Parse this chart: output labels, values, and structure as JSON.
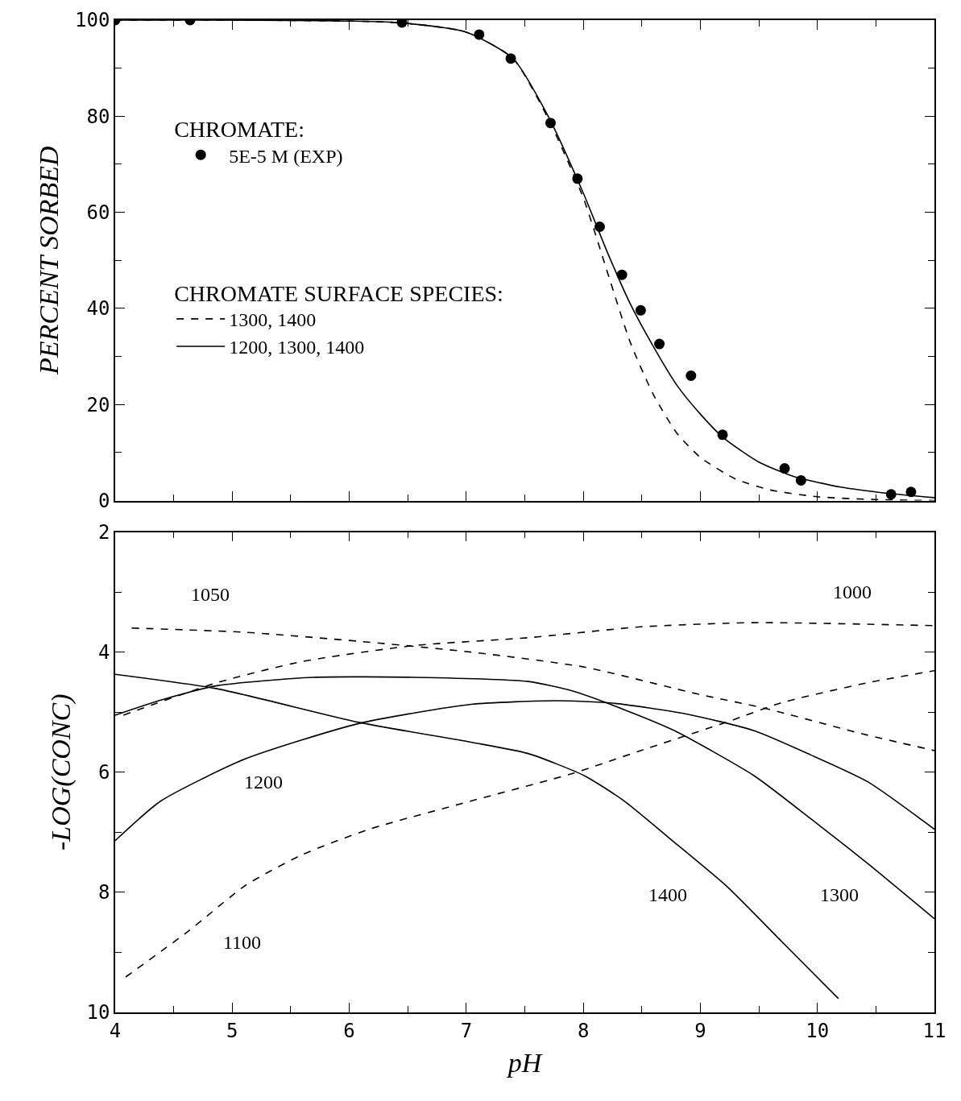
{
  "chart_data": [
    {
      "type": "line",
      "ylabel": "PERCENT SORBED",
      "legend_title": [
        "CHROMATE:",
        "CHROMATE SURFACE SPECIES:"
      ],
      "legend": "left",
      "xlim": [
        4,
        11
      ],
      "xticks": [
        4,
        5,
        6,
        7,
        8,
        9,
        10,
        11
      ],
      "ylim": [
        0,
        100
      ],
      "yticks": [
        0,
        20,
        40,
        60,
        80,
        100
      ],
      "tick_labels": "y",
      "series": [
        {
          "name": "5E-5 M (EXP)",
          "type": "scatter",
          "marker": "circle",
          "color": "#000000",
          "x": [
            4.0,
            4.64,
            6.45,
            7.11,
            7.38,
            7.72,
            7.95,
            8.14,
            8.33,
            8.49,
            8.65,
            8.92,
            9.19,
            9.72,
            9.86,
            10.63,
            10.8
          ],
          "values": [
            100,
            100,
            99.5,
            97,
            92,
            78.6,
            67,
            57,
            47,
            39.6,
            32.6,
            26,
            13.7,
            6.7,
            4.2,
            1.3,
            1.8
          ]
        },
        {
          "name": "1300, 1400",
          "line_style": "dashed",
          "color": "#000000",
          "x": [
            4,
            6.4,
            7,
            7.4,
            7.7,
            8.0,
            8.2,
            8.4,
            8.6,
            8.8,
            9.0,
            9.3,
            9.6,
            10,
            10.5,
            11
          ],
          "values": [
            100,
            99.5,
            97.5,
            92,
            79.5,
            63,
            48,
            33,
            22,
            14,
            9,
            4.5,
            2.2,
            0.8,
            0.2,
            0
          ]
        },
        {
          "name": "1200, 1300, 1400",
          "line_style": "solid",
          "color": "#000000",
          "x": [
            4,
            6.4,
            7,
            7.4,
            7.7,
            8.0,
            8.2,
            8.4,
            8.6,
            8.8,
            9.0,
            9.2,
            9.5,
            9.8,
            10.2,
            10.6,
            11
          ],
          "values": [
            100,
            99.5,
            97.5,
            92,
            80,
            64,
            52,
            41,
            32,
            24,
            18,
            13,
            8,
            5,
            2.8,
            1.5,
            0.6
          ]
        }
      ]
    },
    {
      "type": "line",
      "xlabel": "pH",
      "ylabel": "-LOG(CONC)",
      "xlim": [
        4,
        11
      ],
      "xticks": [
        4,
        5,
        6,
        7,
        8,
        9,
        10,
        11
      ],
      "ylim": [
        10,
        2
      ],
      "yticks": [
        2,
        4,
        6,
        8,
        10
      ],
      "annotations": [
        "1000",
        "1050",
        "1100",
        "1200",
        "1300",
        "1400"
      ],
      "series": [
        {
          "line_style": "dashed",
          "color": "#000000",
          "x": [
            4.07,
            4.87,
            5.59,
            6.56,
            7.53,
            8.49,
            9.46,
            11
          ],
          "values": [
            5.05,
            4.51,
            4.16,
            3.89,
            3.76,
            3.58,
            3.51,
            3.56
          ]
        },
        {
          "line_style": "dashed",
          "color": "#000000",
          "x": [
            4.14,
            5.11,
            6.08,
            7.04,
            8.01,
            8.98,
            9.56,
            10.38,
            11
          ],
          "values": [
            3.6,
            3.67,
            3.82,
            4.0,
            4.25,
            4.7,
            4.94,
            5.36,
            5.64
          ]
        },
        {
          "line_style": "dashed",
          "color": "#000000",
          "x": [
            4.09,
            4.63,
            5.11,
            5.59,
            6.17,
            7.04,
            7.91,
            8.49,
            9.22,
            9.7,
            10.43,
            11
          ],
          "values": [
            9.41,
            8.64,
            7.89,
            7.38,
            6.95,
            6.48,
            6.02,
            5.64,
            5.17,
            4.84,
            4.51,
            4.31
          ]
        },
        {
          "line_style": "solid",
          "color": "#000000",
          "x": [
            4.0,
            4.39,
            5.11,
            6.08,
            7.04,
            7.77,
            8.25,
            8.88,
            9.46,
            9.94,
            10.43,
            11
          ],
          "values": [
            7.14,
            6.48,
            5.78,
            5.19,
            4.87,
            4.81,
            4.85,
            5.03,
            5.31,
            5.71,
            6.16,
            6.95
          ]
        },
        {
          "line_style": "solid",
          "color": "#000000",
          "x": [
            4.0,
            4.39,
            4.87,
            5.69,
            6.56,
            7.53,
            7.91,
            8.35,
            8.78,
            9.46,
            9.94,
            10.43,
            11
          ],
          "values": [
            5.05,
            4.8,
            4.56,
            4.42,
            4.42,
            4.49,
            4.65,
            4.96,
            5.31,
            6.06,
            6.77,
            7.52,
            8.44
          ]
        },
        {
          "line_style": "solid",
          "color": "#000000",
          "x": [
            4.0,
            4.87,
            6.08,
            7.04,
            7.53,
            8.01,
            8.35,
            8.73,
            9.22,
            9.7,
            10.18
          ],
          "values": [
            4.37,
            4.61,
            5.17,
            5.5,
            5.69,
            6.06,
            6.48,
            7.09,
            7.89,
            8.83,
            9.77
          ]
        }
      ]
    }
  ]
}
